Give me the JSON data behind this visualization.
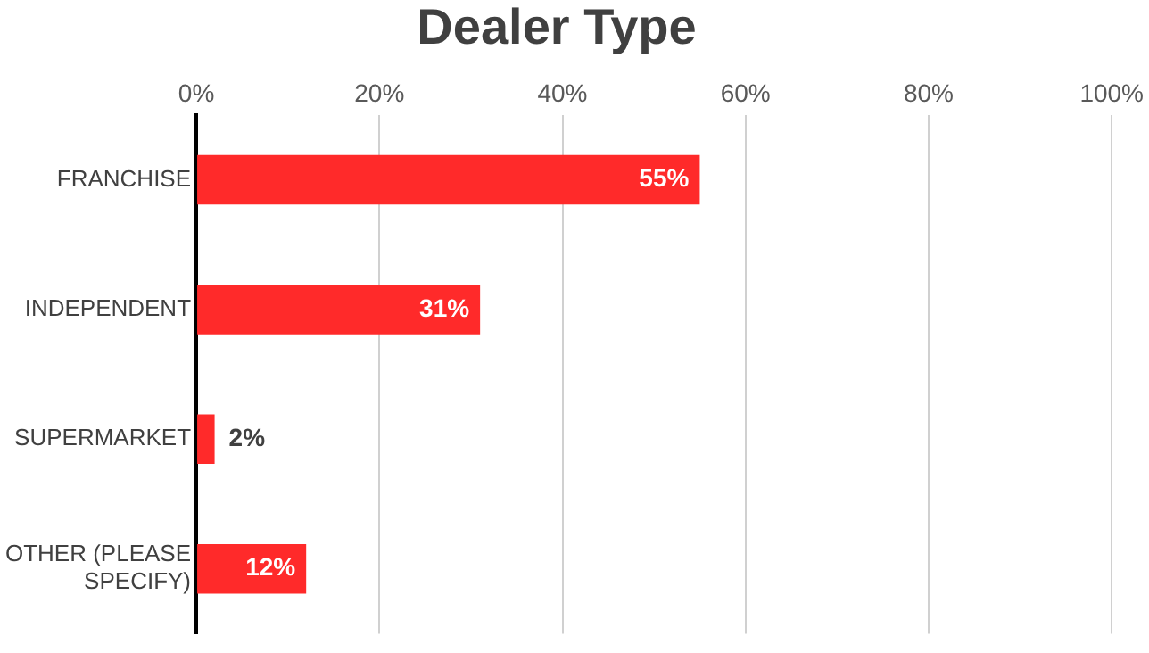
{
  "chart_data": {
    "type": "bar",
    "orientation": "horizontal",
    "title": "Dealer Type",
    "categories": [
      "FRANCHISE",
      "INDEPENDENT",
      "SUPERMARKET",
      "OTHER (PLEASE SPECIFY)"
    ],
    "values": [
      55,
      31,
      2,
      12
    ],
    "value_labels": [
      "55%",
      "31%",
      "2%",
      "12%"
    ],
    "color": "#ff2a2a",
    "xlim": [
      0,
      100
    ],
    "xticks": [
      {
        "value": 0,
        "label": "0%"
      },
      {
        "value": 20,
        "label": "20%"
      },
      {
        "value": 40,
        "label": "40%"
      },
      {
        "value": 60,
        "label": "60%"
      },
      {
        "value": 80,
        "label": "80%"
      },
      {
        "value": 100,
        "label": "100%"
      }
    ],
    "grid": "x",
    "legend": false
  }
}
